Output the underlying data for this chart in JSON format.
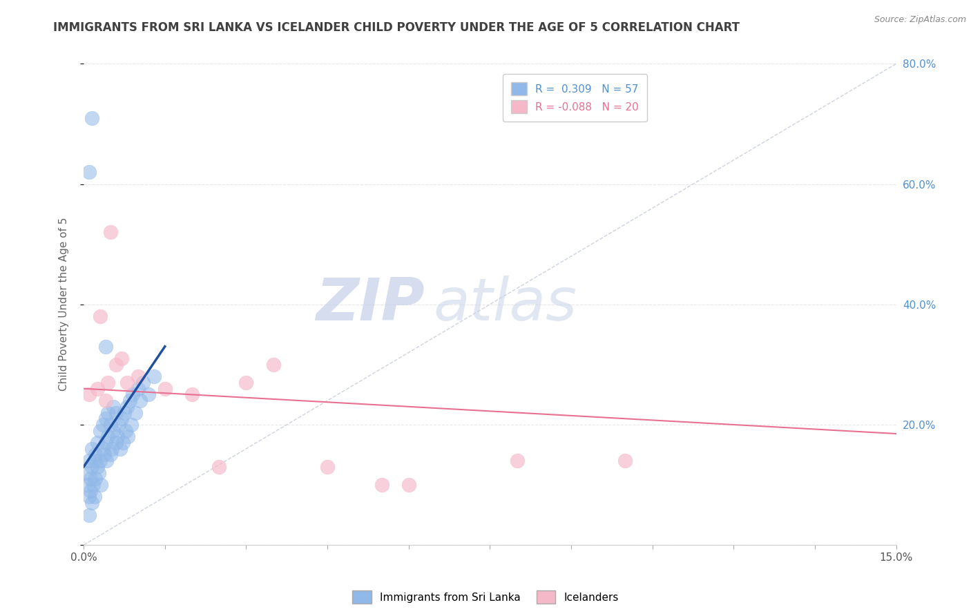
{
  "title": "IMMIGRANTS FROM SRI LANKA VS ICELANDER CHILD POVERTY UNDER THE AGE OF 5 CORRELATION CHART",
  "source": "Source: ZipAtlas.com",
  "ylabel_label": "Child Poverty Under the Age of 5",
  "xlim": [
    0.0,
    15.0
  ],
  "ylim": [
    0.0,
    80.0
  ],
  "yticks": [
    0.0,
    20.0,
    40.0,
    60.0,
    80.0
  ],
  "yticklabels_right": [
    "",
    "20.0%",
    "40.0%",
    "60.0%",
    "80.0%"
  ],
  "xtick_positions": [
    0.0,
    1.5,
    3.0,
    4.5,
    6.0,
    7.5,
    9.0,
    10.5,
    12.0,
    13.5,
    15.0
  ],
  "xticklabels": [
    "0.0%",
    "",
    "",
    "",
    "",
    "",
    "",
    "",
    "",
    "",
    "15.0%"
  ],
  "watermark_zip": "ZIP",
  "watermark_atlas": "atlas",
  "sri_lanka_x": [
    0.05,
    0.08,
    0.1,
    0.1,
    0.1,
    0.12,
    0.13,
    0.15,
    0.15,
    0.15,
    0.18,
    0.2,
    0.2,
    0.22,
    0.22,
    0.25,
    0.25,
    0.28,
    0.3,
    0.3,
    0.32,
    0.35,
    0.35,
    0.38,
    0.4,
    0.4,
    0.42,
    0.45,
    0.45,
    0.5,
    0.5,
    0.52,
    0.55,
    0.55,
    0.6,
    0.6,
    0.62,
    0.65,
    0.68,
    0.7,
    0.72,
    0.75,
    0.78,
    0.8,
    0.82,
    0.85,
    0.88,
    0.9,
    0.95,
    1.0,
    1.05,
    1.1,
    1.2,
    1.3,
    0.15,
    0.4,
    0.1
  ],
  "sri_lanka_y": [
    12,
    10,
    14,
    8,
    5,
    9,
    11,
    7,
    13,
    16,
    10,
    8,
    14,
    11,
    15,
    13,
    17,
    12,
    14,
    19,
    10,
    16,
    20,
    15,
    17,
    21,
    14,
    18,
    22,
    15,
    20,
    16,
    19,
    23,
    17,
    22,
    18,
    20,
    16,
    21,
    17,
    22,
    19,
    23,
    18,
    24,
    20,
    25,
    22,
    26,
    24,
    27,
    25,
    28,
    71,
    33,
    62
  ],
  "icelanders_x": [
    0.1,
    0.25,
    0.3,
    0.4,
    0.45,
    0.5,
    0.6,
    0.7,
    0.8,
    1.0,
    1.5,
    2.0,
    2.5,
    3.0,
    3.5,
    4.5,
    5.5,
    6.0,
    8.0,
    10.0
  ],
  "icelanders_y": [
    25,
    26,
    38,
    24,
    27,
    52,
    30,
    31,
    27,
    28,
    26,
    25,
    13,
    27,
    30,
    13,
    10,
    10,
    14,
    14
  ],
  "sri_lanka_color": "#90b8e8",
  "icelanders_color": "#f5b8c8",
  "sri_lanka_line_color": "#2050a0",
  "icelanders_line_color": "#e87090",
  "ref_line_color": "#c0c8d8",
  "background_color": "#ffffff",
  "grid_color": "#e8e8e8",
  "title_color": "#404040",
  "right_axis_color": "#5090d0",
  "legend_r1": "R =  0.309   N = 57",
  "legend_r2": "R = -0.088   N = 20",
  "legend_series1": "Immigrants from Sri Lanka",
  "legend_series2": "Icelanders",
  "sri_lanka_trend_x0": 0.0,
  "sri_lanka_trend_x1": 1.5,
  "sri_lanka_trend_y0": 13.0,
  "sri_lanka_trend_y1": 33.0,
  "icelanders_trend_x0": 0.0,
  "icelanders_trend_x1": 15.0,
  "icelanders_trend_y0": 26.0,
  "icelanders_trend_y1": 18.5
}
